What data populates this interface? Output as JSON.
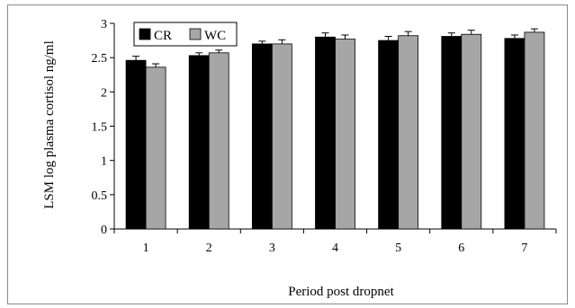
{
  "chart_data": {
    "type": "bar",
    "title": "",
    "xlabel": "Period post dropnet",
    "ylabel": "LSM log plasma cortisol ng/ml",
    "categories": [
      "1",
      "2",
      "3",
      "4",
      "5",
      "6",
      "7"
    ],
    "ylim": [
      0,
      3
    ],
    "yticks": [
      "0",
      "0.5",
      "1",
      "1.5",
      "2",
      "2.5",
      "3"
    ],
    "grid": false,
    "legend_position": "top-left",
    "series": [
      {
        "name": "CR",
        "color": "#000000",
        "values": [
          2.46,
          2.53,
          2.7,
          2.8,
          2.75,
          2.81,
          2.78
        ],
        "errors": [
          0.06,
          0.04,
          0.04,
          0.06,
          0.06,
          0.05,
          0.05
        ]
      },
      {
        "name": "WC",
        "color": "#a6a6a6",
        "values": [
          2.36,
          2.57,
          2.7,
          2.77,
          2.82,
          2.84,
          2.87
        ],
        "errors": [
          0.05,
          0.04,
          0.06,
          0.06,
          0.06,
          0.06,
          0.05
        ]
      }
    ]
  }
}
